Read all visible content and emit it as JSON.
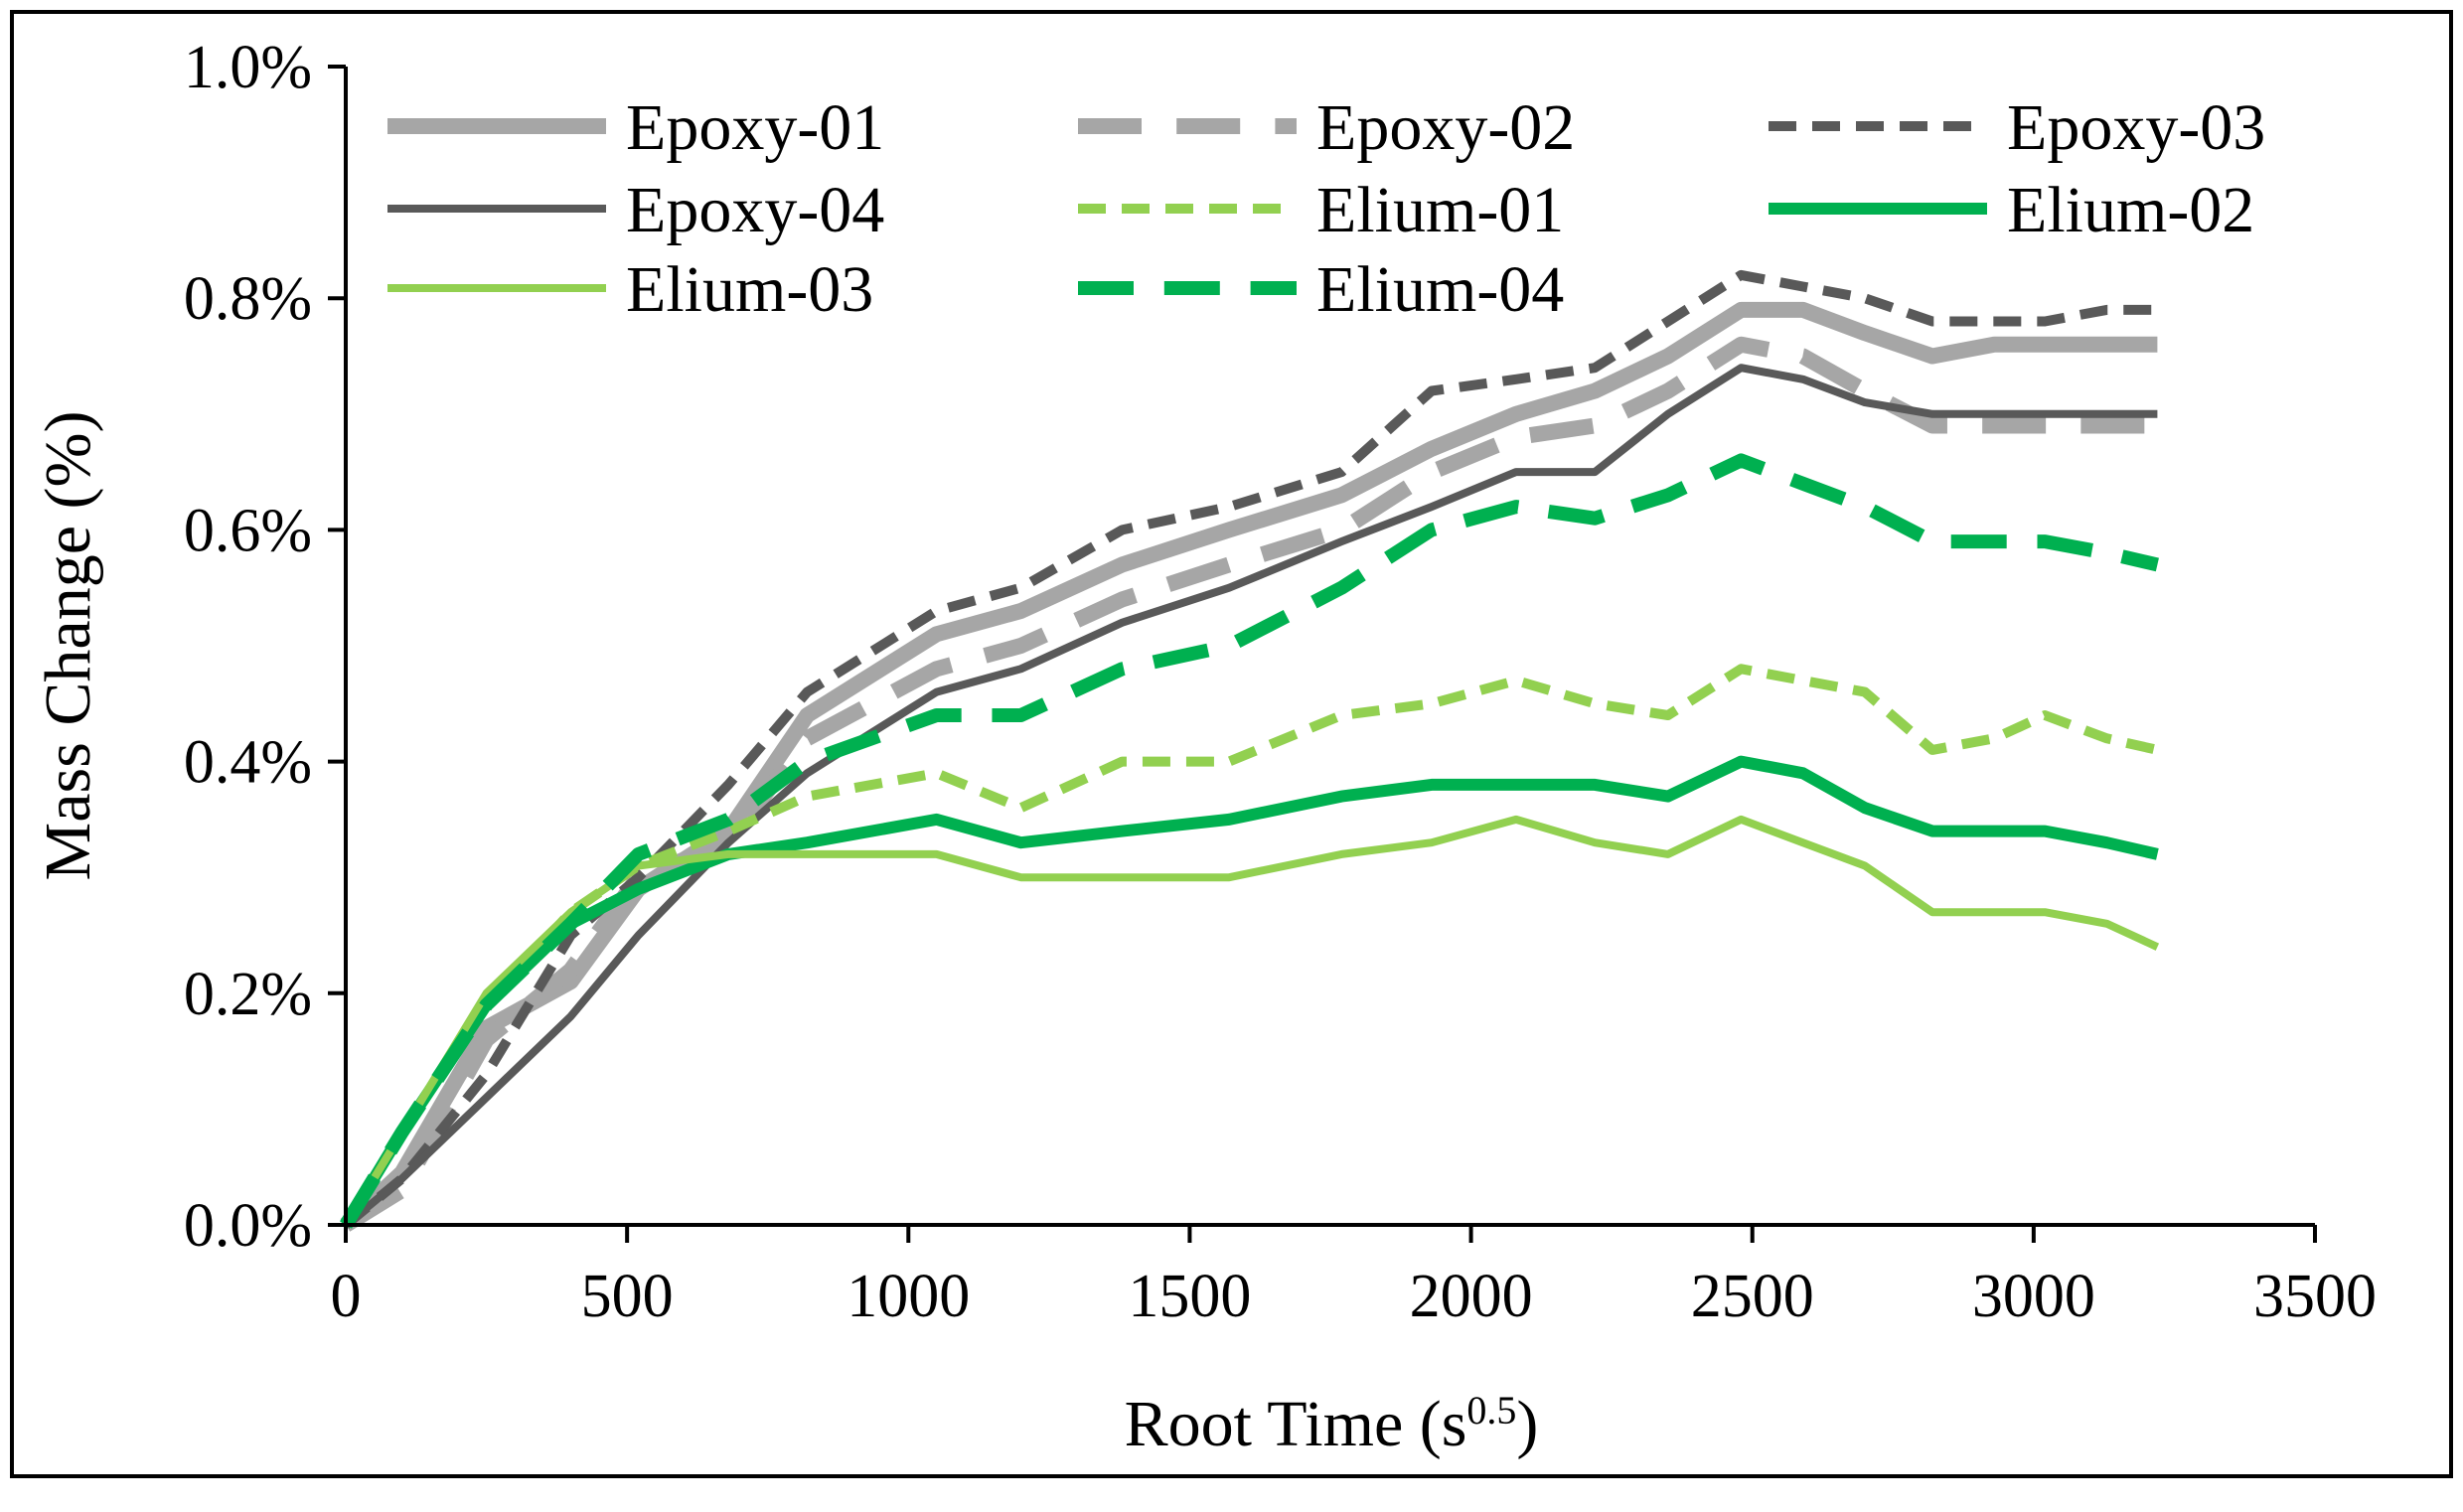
{
  "chart_data": {
    "type": "line",
    "title": "",
    "xlabel": "Root Time (s",
    "xlabel_sup": "0.5",
    "xlabel_close": ")",
    "ylabel": "Mass Change (%)",
    "xlim": [
      0,
      3500
    ],
    "ylim": [
      0,
      0.01
    ],
    "xticks": [
      0,
      500,
      1000,
      1500,
      2000,
      2500,
      3000,
      3500
    ],
    "yticks": [
      0,
      0.002,
      0.004,
      0.006,
      0.008,
      0.01
    ],
    "xtick_labels": [
      "0",
      "500",
      "1000",
      "1500",
      "2000",
      "2500",
      "3000",
      "3500"
    ],
    "ytick_labels": [
      "0.0%",
      "0.2%",
      "0.4%",
      "0.6%",
      "0.8%",
      "1.0%"
    ],
    "grid": false,
    "legend_position": "top",
    "x": [
      0,
      100,
      250,
      400,
      520,
      680,
      820,
      1050,
      1200,
      1380,
      1570,
      1770,
      1930,
      2080,
      2220,
      2350,
      2480,
      2590,
      2700,
      2820,
      2930,
      3020,
      3130,
      3220
    ],
    "series": [
      {
        "name": "Epoxy-01",
        "color": "#a6a6a6",
        "dash": "solid",
        "width": 16,
        "values": [
          0,
          0.00045,
          0.0017,
          0.0021,
          0.0029,
          0.0034,
          0.0044,
          0.0051,
          0.0053,
          0.0057,
          0.006,
          0.0063,
          0.0067,
          0.007,
          0.0072,
          0.0075,
          0.0079,
          0.0079,
          0.0077,
          0.0075,
          0.0076,
          0.0076,
          0.0076,
          0.0076
        ]
      },
      {
        "name": "Epoxy-02",
        "color": "#a6a6a6",
        "dash": "long",
        "width": 16,
        "values": [
          0,
          0.0003,
          0.0016,
          0.0022,
          0.003,
          0.0033,
          0.0042,
          0.0048,
          0.005,
          0.0054,
          0.0057,
          0.006,
          0.0065,
          0.0068,
          0.0069,
          0.0072,
          0.0076,
          0.0075,
          0.0072,
          0.0069,
          0.0069,
          0.0069,
          0.0069,
          0.0069
        ]
      },
      {
        "name": "Epoxy-03",
        "color": "#595959",
        "dash": "short",
        "width": 10,
        "values": [
          0,
          0.0004,
          0.0013,
          0.0025,
          0.003,
          0.0038,
          0.0046,
          0.0053,
          0.0055,
          0.006,
          0.0062,
          0.0065,
          0.0072,
          0.0073,
          0.0074,
          0.0078,
          0.0082,
          0.0081,
          0.008,
          0.0078,
          0.0078,
          0.0078,
          0.0079,
          0.0079
        ]
      },
      {
        "name": "Epoxy-04",
        "color": "#595959",
        "dash": "solid",
        "width": 8,
        "values": [
          0,
          0.0004,
          0.0011,
          0.0018,
          0.0025,
          0.0033,
          0.0039,
          0.0046,
          0.0048,
          0.0052,
          0.0055,
          0.0059,
          0.0062,
          0.0065,
          0.0065,
          0.007,
          0.0074,
          0.0073,
          0.0071,
          0.007,
          0.007,
          0.007,
          0.007,
          0.007
        ]
      },
      {
        "name": "Elium-01",
        "color": "#92d050",
        "dash": "short",
        "width": 10,
        "values": [
          0,
          0.0008,
          0.0019,
          0.0027,
          0.0031,
          0.0034,
          0.0037,
          0.0039,
          0.0036,
          0.004,
          0.004,
          0.0044,
          0.0045,
          0.0047,
          0.0045,
          0.0044,
          0.0048,
          0.0047,
          0.0046,
          0.0041,
          0.0042,
          0.0044,
          0.0042,
          0.0041
        ]
      },
      {
        "name": "Elium-02",
        "color": "#00b050",
        "dash": "solid",
        "width": 12,
        "values": [
          0,
          0.0008,
          0.0019,
          0.0026,
          0.0029,
          0.0032,
          0.0033,
          0.0035,
          0.0033,
          0.0034,
          0.0035,
          0.0037,
          0.0038,
          0.0038,
          0.0038,
          0.0037,
          0.004,
          0.0039,
          0.0036,
          0.0034,
          0.0034,
          0.0034,
          0.0033,
          0.0032
        ]
      },
      {
        "name": "Elium-03",
        "color": "#92d050",
        "dash": "solid",
        "width": 8,
        "values": [
          0,
          0.0008,
          0.002,
          0.0027,
          0.0031,
          0.0032,
          0.0032,
          0.0032,
          0.003,
          0.003,
          0.003,
          0.0032,
          0.0033,
          0.0035,
          0.0033,
          0.0032,
          0.0035,
          0.0033,
          0.0031,
          0.0027,
          0.0027,
          0.0027,
          0.0026,
          0.0024
        ]
      },
      {
        "name": "Elium-04",
        "color": "#00b050",
        "dash": "long",
        "width": 14,
        "values": [
          0,
          0.0008,
          0.0019,
          0.0026,
          0.0032,
          0.0035,
          0.004,
          0.0044,
          0.0044,
          0.0048,
          0.005,
          0.0055,
          0.006,
          0.0062,
          0.0061,
          0.0063,
          0.0066,
          0.0064,
          0.0062,
          0.0059,
          0.0059,
          0.0059,
          0.0058,
          0.0057
        ]
      }
    ]
  }
}
